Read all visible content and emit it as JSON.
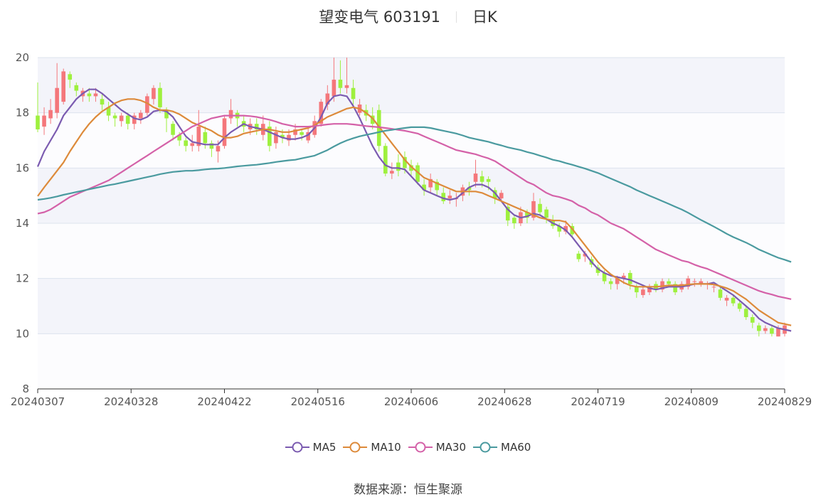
{
  "header": {
    "title": "望变电气 603191",
    "period": "日K"
  },
  "source": {
    "label": "数据来源：",
    "provider": "恒生聚源"
  },
  "colors": {
    "up": "#f4777b",
    "down": "#9ef03e",
    "MA5": "#7b5bb0",
    "MA10": "#dd8a3a",
    "MA30": "#d461a8",
    "MA60": "#4a9a9f",
    "band": "#f3f4fa",
    "grid": "#dde3ee"
  },
  "chart_data": {
    "type": "candlestick",
    "ylim": [
      8,
      20
    ],
    "yticks": [
      "8",
      "10",
      "12",
      "14",
      "16",
      "18",
      "20"
    ],
    "xticks": [
      "20240307",
      "20240328",
      "20240422",
      "20240516",
      "20240606",
      "20240628",
      "20240719",
      "20240809",
      "20240829"
    ],
    "legend": [
      "MA5",
      "MA10",
      "MA30",
      "MA60"
    ],
    "legend_position": "bottom",
    "candles": [
      [
        17.9,
        17.4,
        19.1,
        17.3
      ],
      [
        17.5,
        17.9,
        18.2,
        17.2
      ],
      [
        17.8,
        18.1,
        18.5,
        17.6
      ],
      [
        18.0,
        18.9,
        19.8,
        17.8
      ],
      [
        18.4,
        19.5,
        19.6,
        18.3
      ],
      [
        19.4,
        19.2,
        19.5,
        18.9
      ],
      [
        19.0,
        18.8,
        19.1,
        18.6
      ],
      [
        18.6,
        18.8,
        18.9,
        18.4
      ],
      [
        18.7,
        18.6,
        18.9,
        18.4
      ],
      [
        18.6,
        18.7,
        18.9,
        18.4
      ],
      [
        18.5,
        18.3,
        18.7,
        18.1
      ],
      [
        18.2,
        17.9,
        18.4,
        17.7
      ],
      [
        17.9,
        17.8,
        18.0,
        17.5
      ],
      [
        17.7,
        17.9,
        18.0,
        17.5
      ],
      [
        17.9,
        17.6,
        18.0,
        17.4
      ],
      [
        17.6,
        17.9,
        18.0,
        17.4
      ],
      [
        17.8,
        18.0,
        18.1,
        17.6
      ],
      [
        18.0,
        18.6,
        18.7,
        17.9
      ],
      [
        18.5,
        18.9,
        19.0,
        18.3
      ],
      [
        18.9,
        18.2,
        19.1,
        18.0
      ],
      [
        18.1,
        17.8,
        18.2,
        17.3
      ],
      [
        17.6,
        17.2,
        17.7,
        17.0
      ],
      [
        17.2,
        17.0,
        17.3,
        16.8
      ],
      [
        17.0,
        16.8,
        17.1,
        16.6
      ],
      [
        16.8,
        16.9,
        17.2,
        16.6
      ],
      [
        16.8,
        17.5,
        18.1,
        16.6
      ],
      [
        17.3,
        16.9,
        17.5,
        16.7
      ],
      [
        16.9,
        16.7,
        17.0,
        16.4
      ],
      [
        16.6,
        16.8,
        17.0,
        16.2
      ],
      [
        16.8,
        17.8,
        17.9,
        16.7
      ],
      [
        17.8,
        18.1,
        18.5,
        17.6
      ],
      [
        18.0,
        17.8,
        18.1,
        17.5
      ],
      [
        17.7,
        17.5,
        17.9,
        17.3
      ],
      [
        17.4,
        17.6,
        17.8,
        17.2
      ],
      [
        17.6,
        17.4,
        17.8,
        17.2
      ],
      [
        17.2,
        17.6,
        17.9,
        17.0
      ],
      [
        17.5,
        16.8,
        17.7,
        16.6
      ],
      [
        16.9,
        17.3,
        17.5,
        16.7
      ],
      [
        17.2,
        17.1,
        17.4,
        16.9
      ],
      [
        17.0,
        17.2,
        17.4,
        16.8
      ],
      [
        17.2,
        17.4,
        17.6,
        17.0
      ],
      [
        17.3,
        17.2,
        17.4,
        17.0
      ],
      [
        17.0,
        17.3,
        17.5,
        16.9
      ],
      [
        17.2,
        17.7,
        17.9,
        17.1
      ],
      [
        17.6,
        18.4,
        18.5,
        17.5
      ],
      [
        18.3,
        18.7,
        19.0,
        18.1
      ],
      [
        18.6,
        19.2,
        20.0,
        18.4
      ],
      [
        19.2,
        18.9,
        19.9,
        18.7
      ],
      [
        18.9,
        19.0,
        20.0,
        18.7
      ],
      [
        18.9,
        18.5,
        19.2,
        18.3
      ],
      [
        18.0,
        18.3,
        18.5,
        17.9
      ],
      [
        18.1,
        17.9,
        18.3,
        17.7
      ],
      [
        17.9,
        17.6,
        18.2,
        17.4
      ],
      [
        18.1,
        16.8,
        18.3,
        16.6
      ],
      [
        16.8,
        15.8,
        16.9,
        15.7
      ],
      [
        15.8,
        15.9,
        16.2,
        15.6
      ],
      [
        16.2,
        15.9,
        16.5,
        15.7
      ],
      [
        16.4,
        16.0,
        16.6,
        15.8
      ],
      [
        16.1,
        15.9,
        16.3,
        15.7
      ],
      [
        16.1,
        15.5,
        16.2,
        15.4
      ],
      [
        15.4,
        15.2,
        15.6,
        15.0
      ],
      [
        15.3,
        15.6,
        15.8,
        15.1
      ],
      [
        15.5,
        15.2,
        15.6,
        15.0
      ],
      [
        15.1,
        14.8,
        15.3,
        14.7
      ],
      [
        14.9,
        15.0,
        15.2,
        14.7
      ],
      [
        14.9,
        14.9,
        15.1,
        14.6
      ],
      [
        15.0,
        15.3,
        15.4,
        14.8
      ],
      [
        15.3,
        15.2,
        15.5,
        15.0
      ],
      [
        15.5,
        15.8,
        16.3,
        15.3
      ],
      [
        15.7,
        15.5,
        15.9,
        15.3
      ],
      [
        15.6,
        15.5,
        15.7,
        15.2
      ],
      [
        15.2,
        14.9,
        15.3,
        14.7
      ],
      [
        14.9,
        15.1,
        15.2,
        14.8
      ],
      [
        14.6,
        14.1,
        14.7,
        13.9
      ],
      [
        14.2,
        14.0,
        14.3,
        13.8
      ],
      [
        14.0,
        14.4,
        14.6,
        13.9
      ],
      [
        14.4,
        14.2,
        14.5,
        14.0
      ],
      [
        14.2,
        14.8,
        15.1,
        14.1
      ],
      [
        14.7,
        14.4,
        14.9,
        14.3
      ],
      [
        14.5,
        14.2,
        14.6,
        14.0
      ],
      [
        14.1,
        13.9,
        14.3,
        13.8
      ],
      [
        13.9,
        13.7,
        14.0,
        13.5
      ],
      [
        13.7,
        13.9,
        14.1,
        13.6
      ],
      [
        13.9,
        13.6,
        14.0,
        13.5
      ],
      [
        12.9,
        12.7,
        13.0,
        12.6
      ],
      [
        12.8,
        12.9,
        13.0,
        12.6
      ],
      [
        12.7,
        12.5,
        12.8,
        12.4
      ],
      [
        12.4,
        12.2,
        12.5,
        12.1
      ],
      [
        12.2,
        11.9,
        12.3,
        11.8
      ],
      [
        11.9,
        11.8,
        12.0,
        11.6
      ],
      [
        11.8,
        12.0,
        12.1,
        11.6
      ],
      [
        12.0,
        12.1,
        12.2,
        11.8
      ],
      [
        12.2,
        11.8,
        12.3,
        11.6
      ],
      [
        11.7,
        11.5,
        11.8,
        11.3
      ],
      [
        11.4,
        11.6,
        11.7,
        11.3
      ],
      [
        11.5,
        11.7,
        11.8,
        11.4
      ],
      [
        11.8,
        11.6,
        11.9,
        11.5
      ],
      [
        11.6,
        11.9,
        12.0,
        11.5
      ],
      [
        11.9,
        11.8,
        12.0,
        11.7
      ],
      [
        11.8,
        11.5,
        11.9,
        11.4
      ],
      [
        11.6,
        11.8,
        11.9,
        11.5
      ],
      [
        11.7,
        12.0,
        12.1,
        11.6
      ],
      [
        11.9,
        11.9,
        12.0,
        11.7
      ],
      [
        11.8,
        11.9,
        12.0,
        11.7
      ],
      [
        11.8,
        11.8,
        11.9,
        11.6
      ],
      [
        11.7,
        11.7,
        11.8,
        11.5
      ],
      [
        11.6,
        11.3,
        11.7,
        11.2
      ],
      [
        11.2,
        11.3,
        11.4,
        11.0
      ],
      [
        11.3,
        11.1,
        11.4,
        11.0
      ],
      [
        11.1,
        10.9,
        11.2,
        10.8
      ],
      [
        10.9,
        10.6,
        11.0,
        10.5
      ],
      [
        10.6,
        10.4,
        10.7,
        10.2
      ],
      [
        10.3,
        10.1,
        10.4,
        9.9
      ],
      [
        10.1,
        10.2,
        10.3,
        10.0
      ],
      [
        10.2,
        10.0,
        10.3,
        9.9
      ],
      [
        9.9,
        10.2,
        10.3,
        9.9
      ],
      [
        10.0,
        10.3,
        10.4,
        9.9
      ]
    ],
    "ma_series": [
      {
        "name": "MA5",
        "values": [
          16.05,
          16.6,
          17.0,
          17.4,
          17.9,
          18.2,
          18.5,
          18.7,
          18.85,
          18.85,
          18.7,
          18.5,
          18.3,
          18.1,
          17.95,
          17.8,
          17.75,
          17.85,
          18.05,
          18.1,
          18.05,
          17.85,
          17.5,
          17.15,
          16.95,
          16.9,
          16.85,
          16.85,
          16.85,
          17.1,
          17.3,
          17.45,
          17.6,
          17.5,
          17.45,
          17.4,
          17.3,
          17.2,
          17.1,
          17.05,
          17.05,
          17.1,
          17.2,
          17.45,
          17.85,
          18.35,
          18.6,
          18.65,
          18.6,
          18.25,
          17.8,
          17.3,
          16.8,
          16.4,
          16.1,
          16.0,
          16.0,
          15.95,
          15.7,
          15.45,
          15.2,
          15.1,
          15.0,
          14.9,
          14.85,
          14.9,
          15.1,
          15.3,
          15.4,
          15.4,
          15.3,
          15.1,
          14.8,
          14.5,
          14.3,
          14.2,
          14.25,
          14.35,
          14.3,
          14.15,
          14.0,
          13.9,
          13.75,
          13.5,
          13.2,
          12.9,
          12.6,
          12.35,
          12.2,
          12.1,
          12.05,
          12.0,
          11.95,
          11.85,
          11.75,
          11.65,
          11.6,
          11.65,
          11.7,
          11.7,
          11.7,
          11.75,
          11.8,
          11.8,
          11.8,
          11.85,
          11.7,
          11.55,
          11.4,
          11.2,
          11.0,
          10.8,
          10.55,
          10.4,
          10.3,
          10.2,
          10.15,
          10.1
        ]
      },
      {
        "name": "MA10",
        "values": [
          14.98,
          15.3,
          15.6,
          15.9,
          16.2,
          16.6,
          16.95,
          17.3,
          17.6,
          17.85,
          18.05,
          18.2,
          18.35,
          18.45,
          18.5,
          18.5,
          18.45,
          18.35,
          18.2,
          18.1,
          18.1,
          18.05,
          17.95,
          17.8,
          17.65,
          17.55,
          17.45,
          17.35,
          17.2,
          17.1,
          17.1,
          17.15,
          17.25,
          17.3,
          17.35,
          17.4,
          17.4,
          17.35,
          17.3,
          17.3,
          17.35,
          17.4,
          17.45,
          17.55,
          17.7,
          17.85,
          17.95,
          18.05,
          18.15,
          18.2,
          18.15,
          18.0,
          17.8,
          17.5,
          17.2,
          16.9,
          16.6,
          16.3,
          16.05,
          15.85,
          15.65,
          15.55,
          15.45,
          15.35,
          15.25,
          15.15,
          15.15,
          15.15,
          15.15,
          15.1,
          15.0,
          14.9,
          14.8,
          14.7,
          14.6,
          14.5,
          14.4,
          14.3,
          14.2,
          14.15,
          14.1,
          14.1,
          14.05,
          13.8,
          13.5,
          13.2,
          12.9,
          12.6,
          12.35,
          12.15,
          12.0,
          11.85,
          11.75,
          11.7,
          11.7,
          11.7,
          11.7,
          11.72,
          11.75,
          11.75,
          11.75,
          11.78,
          11.8,
          11.8,
          11.8,
          11.78,
          11.72,
          11.65,
          11.55,
          11.4,
          11.25,
          11.05,
          10.85,
          10.7,
          10.55,
          10.4,
          10.35,
          10.3
        ]
      },
      {
        "name": "MA30",
        "values": [
          14.35,
          14.4,
          14.5,
          14.65,
          14.8,
          14.95,
          15.05,
          15.15,
          15.25,
          15.35,
          15.45,
          15.55,
          15.7,
          15.85,
          16.0,
          16.15,
          16.3,
          16.45,
          16.6,
          16.75,
          16.9,
          17.05,
          17.2,
          17.35,
          17.5,
          17.6,
          17.7,
          17.8,
          17.85,
          17.9,
          17.9,
          17.9,
          17.9,
          17.88,
          17.85,
          17.8,
          17.75,
          17.68,
          17.6,
          17.55,
          17.5,
          17.5,
          17.5,
          17.52,
          17.55,
          17.58,
          17.6,
          17.6,
          17.6,
          17.58,
          17.55,
          17.52,
          17.5,
          17.48,
          17.45,
          17.42,
          17.38,
          17.35,
          17.3,
          17.25,
          17.15,
          17.05,
          16.95,
          16.85,
          16.75,
          16.65,
          16.6,
          16.55,
          16.5,
          16.42,
          16.35,
          16.25,
          16.1,
          15.95,
          15.8,
          15.65,
          15.5,
          15.4,
          15.25,
          15.1,
          15.0,
          14.95,
          14.88,
          14.8,
          14.65,
          14.55,
          14.4,
          14.3,
          14.15,
          14.0,
          13.9,
          13.8,
          13.65,
          13.5,
          13.35,
          13.2,
          13.05,
          12.95,
          12.85,
          12.75,
          12.65,
          12.6,
          12.5,
          12.42,
          12.35,
          12.25,
          12.15,
          12.05,
          11.95,
          11.85,
          11.75,
          11.65,
          11.55,
          11.48,
          11.42,
          11.35,
          11.3,
          11.25
        ]
      },
      {
        "name": "MA60",
        "values": [
          14.85,
          14.88,
          14.92,
          14.97,
          15.03,
          15.08,
          15.13,
          15.18,
          15.23,
          15.28,
          15.33,
          15.38,
          15.42,
          15.47,
          15.52,
          15.57,
          15.62,
          15.67,
          15.72,
          15.78,
          15.82,
          15.86,
          15.88,
          15.9,
          15.9,
          15.92,
          15.95,
          15.97,
          15.98,
          16.0,
          16.03,
          16.06,
          16.08,
          16.1,
          16.12,
          16.15,
          16.18,
          16.22,
          16.25,
          16.28,
          16.3,
          16.35,
          16.4,
          16.45,
          16.55,
          16.65,
          16.78,
          16.9,
          17.0,
          17.08,
          17.15,
          17.2,
          17.25,
          17.3,
          17.35,
          17.38,
          17.42,
          17.45,
          17.48,
          17.48,
          17.48,
          17.45,
          17.4,
          17.35,
          17.3,
          17.25,
          17.18,
          17.1,
          17.05,
          17.0,
          16.95,
          16.88,
          16.82,
          16.75,
          16.7,
          16.65,
          16.58,
          16.52,
          16.45,
          16.38,
          16.3,
          16.25,
          16.18,
          16.12,
          16.05,
          15.98,
          15.9,
          15.82,
          15.72,
          15.62,
          15.52,
          15.42,
          15.32,
          15.2,
          15.1,
          15.0,
          14.9,
          14.8,
          14.7,
          14.6,
          14.5,
          14.38,
          14.25,
          14.12,
          14.0,
          13.88,
          13.75,
          13.62,
          13.5,
          13.4,
          13.3,
          13.18,
          13.05,
          12.95,
          12.85,
          12.75,
          12.68,
          12.6
        ]
      }
    ]
  }
}
